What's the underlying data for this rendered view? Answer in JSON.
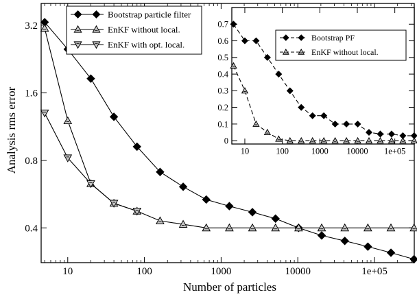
{
  "chart_data": [
    {
      "type": "line",
      "xlabel": "Number of particles",
      "ylabel": "Analysis rms error",
      "xscale": "log",
      "yscale": "log",
      "xlim": [
        4.5,
        330000
      ],
      "ylim": [
        0.28,
        4.0
      ],
      "xticks": [
        10,
        100,
        1000,
        10000,
        100000
      ],
      "xticklabels": [
        "10",
        "100",
        "1000",
        "10000",
        "1e+05"
      ],
      "yticks": [
        0.4,
        0.8,
        1.6,
        3.2
      ],
      "yticklabels": [
        "0.4",
        "0.8",
        "1.6",
        "3.2"
      ],
      "grid": false,
      "legend": "top-left",
      "series": [
        {
          "name": "Bootstrap particle filter",
          "marker": "diamond",
          "line": "solid",
          "x": [
            5,
            10,
            20,
            40,
            80,
            160,
            320,
            640,
            1280,
            2560,
            5120,
            10240,
            20480,
            40960,
            81920,
            163840,
            327680
          ],
          "y": [
            3.3,
            2.5,
            1.85,
            1.25,
            0.92,
            0.71,
            0.61,
            0.535,
            0.5,
            0.47,
            0.44,
            0.4,
            0.37,
            0.35,
            0.33,
            0.31,
            0.29
          ]
        },
        {
          "name": "EnKF without local.",
          "marker": "triangle-up",
          "line": "solid",
          "x": [
            5,
            10,
            20,
            40,
            80,
            160,
            320,
            640,
            1280,
            2560,
            5120,
            10240,
            20480,
            40960,
            81920,
            163840,
            327680
          ],
          "y": [
            3.1,
            1.2,
            0.63,
            0.515,
            0.475,
            0.43,
            0.415,
            0.4,
            0.4,
            0.4,
            0.4,
            0.4,
            0.4,
            0.4,
            0.4,
            0.4,
            0.4
          ]
        },
        {
          "name": "EnKF with opt. local.",
          "marker": "triangle-down",
          "line": "solid",
          "x": [
            5,
            10,
            20,
            40,
            80
          ],
          "y": [
            1.3,
            0.82,
            0.63,
            0.515,
            0.475
          ]
        }
      ]
    },
    {
      "type": "line",
      "xscale": "log",
      "xlim": [
        4.5,
        330000
      ],
      "ylim": [
        -0.02,
        0.8
      ],
      "xticks": [
        10,
        100,
        1000,
        10000,
        100000
      ],
      "xticklabels": [
        "10",
        "100",
        "1000",
        "10000",
        "1e+05"
      ],
      "yticks": [
        0,
        0.1,
        0.2,
        0.3,
        0.4,
        0.5,
        0.6,
        0.7
      ],
      "yticklabels": [
        "0",
        "0.1",
        "0.2",
        "0.3",
        "0.4",
        "0.5",
        "0.6",
        "0.7"
      ],
      "grid": false,
      "legend": "top-right",
      "series": [
        {
          "name": "Bootstrap PF",
          "marker": "diamond",
          "line": "dashed",
          "x": [
            5,
            10,
            20,
            40,
            80,
            160,
            320,
            640,
            1280,
            2560,
            5120,
            10240,
            20480,
            40960,
            81920,
            163840,
            327680
          ],
          "y": [
            0.7,
            0.6,
            0.6,
            0.5,
            0.4,
            0.3,
            0.2,
            0.15,
            0.15,
            0.1,
            0.1,
            0.1,
            0.05,
            0.04,
            0.04,
            0.03,
            0.03
          ]
        },
        {
          "name": "EnKF without local.",
          "marker": "triangle-up",
          "line": "dashed",
          "x": [
            5,
            10,
            20,
            40,
            80,
            160,
            320,
            640,
            1280,
            2560,
            5120,
            10240,
            20480,
            40960,
            81920,
            163840,
            327680
          ],
          "y": [
            0.45,
            0.3,
            0.1,
            0.05,
            0.01,
            0.0,
            0.0,
            0.0,
            0.0,
            0.0,
            0.0,
            0.0,
            0.0,
            0.0,
            0.0,
            0.0,
            0.0
          ]
        }
      ]
    }
  ]
}
